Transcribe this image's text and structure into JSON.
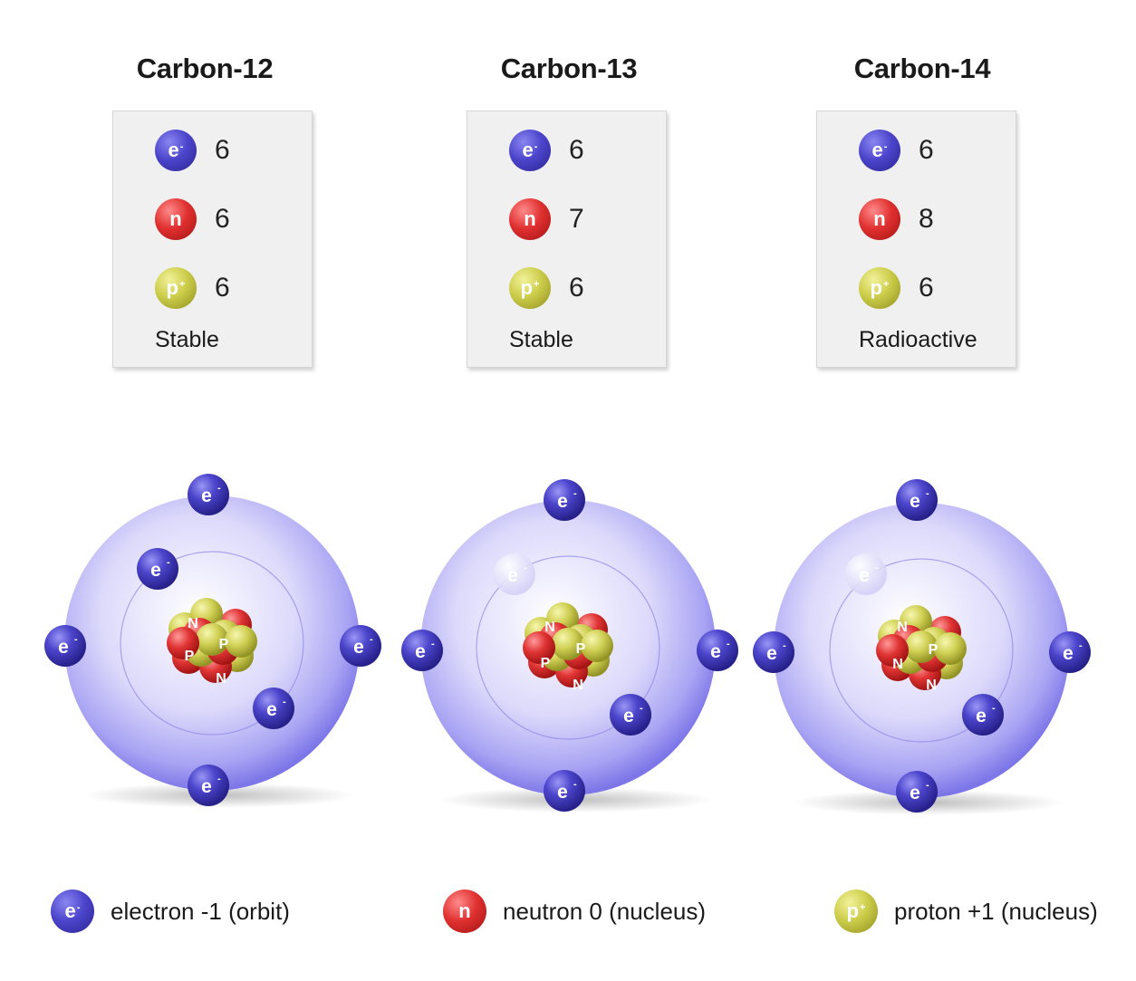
{
  "isotopes": [
    {
      "title": "Carbon-12",
      "electrons": "6",
      "neutrons": "6",
      "protons": "6",
      "stability": "Stable"
    },
    {
      "title": "Carbon-13",
      "electrons": "6",
      "neutrons": "7",
      "protons": "6",
      "stability": "Stable"
    },
    {
      "title": "Carbon-14",
      "electrons": "6",
      "neutrons": "8",
      "protons": "6",
      "stability": "Radioactive"
    }
  ],
  "particle_symbols": {
    "electron": "e",
    "electron_charge": "-",
    "neutron": "n",
    "proton": "p",
    "proton_charge": "+"
  },
  "nucleus_labels": {
    "neutron": "N",
    "proton": "P"
  },
  "legend": {
    "electron": "electron -1 (orbit)",
    "neutron": "neutron 0 (nucleus)",
    "proton": "proton +1 (nucleus)"
  },
  "colors": {
    "electron": "#4c45cc",
    "neutron": "#e03030",
    "proton": "#cccc4a",
    "orbit": "#b7b3f5"
  }
}
